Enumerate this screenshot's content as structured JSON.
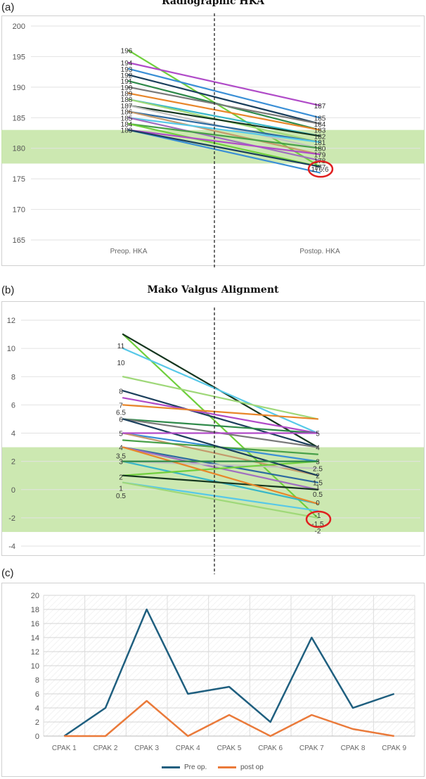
{
  "chart_data": [
    {
      "panel": "(a)",
      "type": "line",
      "title": "Radiographic HKA",
      "categories": [
        "Preop. HKA",
        "Postop. HKA"
      ],
      "ylim": [
        165,
        200
      ],
      "yticks": [
        165,
        170,
        175,
        180,
        185,
        190,
        195,
        200
      ],
      "target_band": [
        177.5,
        183
      ],
      "grid": true,
      "series_colors": [
        "#6fcf3c",
        "#b04bc8",
        "#3a8fd6",
        "#1b3f5c",
        "#2f8a4a",
        "#7a7a7a",
        "#e8862a",
        "#37b6c8",
        "#9fd879",
        "#15361f",
        "#c2c2c2",
        "#2d6aa0",
        "#c49a6c",
        "#57c8e8",
        "#a06fc0",
        "#48a048"
      ],
      "pairs": [
        [
          196,
          177
        ],
        [
          194,
          187
        ],
        [
          193,
          185
        ],
        [
          192,
          184
        ],
        [
          191,
          183
        ],
        [
          190,
          184
        ],
        [
          189,
          183
        ],
        [
          188,
          182
        ],
        [
          188,
          181
        ],
        [
          187,
          182
        ],
        [
          187,
          180
        ],
        [
          186,
          181
        ],
        [
          186,
          179
        ],
        [
          185,
          181
        ],
        [
          185,
          178
        ],
        [
          184,
          180
        ],
        [
          184,
          177
        ],
        [
          183,
          179
        ],
        [
          183,
          176
        ],
        [
          183,
          177
        ]
      ],
      "pre_labels": [
        {
          "text": "196",
          "y": 196
        },
        {
          "text": "194",
          "y": 194
        },
        {
          "text": "193",
          "y": 193
        },
        {
          "text": "192",
          "y": 192
        },
        {
          "text": "191",
          "y": 191
        },
        {
          "text": "190",
          "y": 190
        },
        {
          "text": "189",
          "y": 189
        },
        {
          "text": "188",
          "y": 188
        },
        {
          "text": "187",
          "y": 187
        },
        {
          "text": "186",
          "y": 186
        },
        {
          "text": "185",
          "y": 185
        },
        {
          "text": "184",
          "y": 184
        },
        {
          "text": "183",
          "y": 183
        }
      ],
      "post_labels": [
        {
          "text": "187",
          "y": 187
        },
        {
          "text": "185",
          "y": 185
        },
        {
          "text": "184",
          "y": 184
        },
        {
          "text": "183",
          "y": 183
        },
        {
          "text": "182",
          "y": 182
        },
        {
          "text": "181",
          "y": 181
        },
        {
          "text": "180",
          "y": 180
        },
        {
          "text": "179",
          "y": 179
        },
        {
          "text": "178",
          "y": 178
        },
        {
          "text": "177",
          "y": 177
        },
        {
          "text": "176.6",
          "y": 176.6
        }
      ],
      "highlight": {
        "value": 176.6,
        "color": "#e02020"
      }
    },
    {
      "panel": "(b)",
      "type": "line",
      "title": "Mako Valgus Alignment",
      "categories": [
        "",
        ""
      ],
      "ylim": [
        -4,
        12
      ],
      "yticks": [
        -4,
        -2,
        0,
        2,
        4,
        6,
        8,
        10,
        12
      ],
      "target_band": [
        -3,
        3
      ],
      "grid": true,
      "series_colors": [
        "#6fcf3c",
        "#15361f",
        "#57c8e8",
        "#9fd879",
        "#1b3f5c",
        "#b04bc8",
        "#e8862a",
        "#2f8a4a",
        "#7a7a7a",
        "#3a8fd6",
        "#c49a6c",
        "#48a048",
        "#2d6aa0",
        "#a06fc0",
        "#37b6c8",
        "#c2c2c2"
      ],
      "pairs": [
        [
          11,
          -2
        ],
        [
          11,
          3
        ],
        [
          10,
          4
        ],
        [
          8,
          5
        ],
        [
          7,
          3
        ],
        [
          6.5,
          4
        ],
        [
          6,
          5
        ],
        [
          5,
          4
        ],
        [
          5,
          3
        ],
        [
          4,
          2
        ],
        [
          4,
          1
        ],
        [
          3.5,
          2.5
        ],
        [
          3,
          0.5
        ],
        [
          3,
          0
        ],
        [
          2,
          -1
        ],
        [
          2,
          1.5
        ],
        [
          1,
          2
        ],
        [
          1,
          0
        ],
        [
          0.5,
          -1.5
        ],
        [
          0.5,
          -2
        ],
        [
          5,
          1
        ],
        [
          4,
          4
        ],
        [
          3,
          -1
        ],
        [
          2,
          2
        ]
      ],
      "pre_labels": [
        {
          "text": "11",
          "y": 10.2
        },
        {
          "text": "10",
          "y": 9
        },
        {
          "text": "8",
          "y": 7
        },
        {
          "text": "7",
          "y": 6
        },
        {
          "text": "6.5",
          "y": 5.5
        },
        {
          "text": "6",
          "y": 5
        },
        {
          "text": "5",
          "y": 4
        },
        {
          "text": "4",
          "y": 3
        },
        {
          "text": "3.5",
          "y": 2.4
        },
        {
          "text": "3",
          "y": 2
        },
        {
          "text": "2",
          "y": 0.9
        },
        {
          "text": "1",
          "y": 0.1
        },
        {
          "text": "0.5",
          "y": -0.4
        }
      ],
      "post_labels": [
        {
          "text": "5",
          "y": 4
        },
        {
          "text": "4",
          "y": 3
        },
        {
          "text": "3",
          "y": 2
        },
        {
          "text": "2.5",
          "y": 1.5
        },
        {
          "text": "2",
          "y": 1
        },
        {
          "text": "1.5",
          "y": 0.5
        },
        {
          "text": "1",
          "y": 0.2
        },
        {
          "text": "0.5",
          "y": -0.3
        },
        {
          "text": "0",
          "y": -0.9
        },
        {
          "text": "-1",
          "y": -1.8
        },
        {
          "text": "-1.5",
          "y": -2.4
        },
        {
          "text": "-2",
          "y": -2.9
        }
      ],
      "highlight": {
        "value": -2.1,
        "color": "#e02020"
      }
    },
    {
      "panel": "(c)",
      "type": "line",
      "title": "",
      "categories": [
        "CPAK 1",
        "CPAK 2",
        "CPAK 3",
        "CPAK 4",
        "CPAK 5",
        "CPAK 6",
        "CPAK 7",
        "CPAK 8",
        "CPAK 9"
      ],
      "ylim": [
        0,
        20
      ],
      "yticks": [
        0,
        2,
        4,
        6,
        8,
        10,
        12,
        14,
        16,
        18,
        20
      ],
      "grid": true,
      "legend_position": "bottom",
      "series": [
        {
          "name": "Pre op.",
          "color": "#1f5f7f",
          "values": [
            0,
            4,
            18,
            6,
            7,
            2,
            14,
            4,
            6
          ]
        },
        {
          "name": "post op",
          "color": "#ea7a3a",
          "values": [
            0,
            0,
            5,
            0,
            3,
            0,
            3,
            1,
            0
          ]
        }
      ]
    }
  ],
  "labels": {
    "panel_a": "(a)",
    "panel_b": "(b)",
    "panel_c": "(c)",
    "title_a": "Radiographic HKA",
    "title_b": "Mako Valgus Alignment",
    "legend_pre": "Pre op.",
    "legend_post": "post op"
  }
}
